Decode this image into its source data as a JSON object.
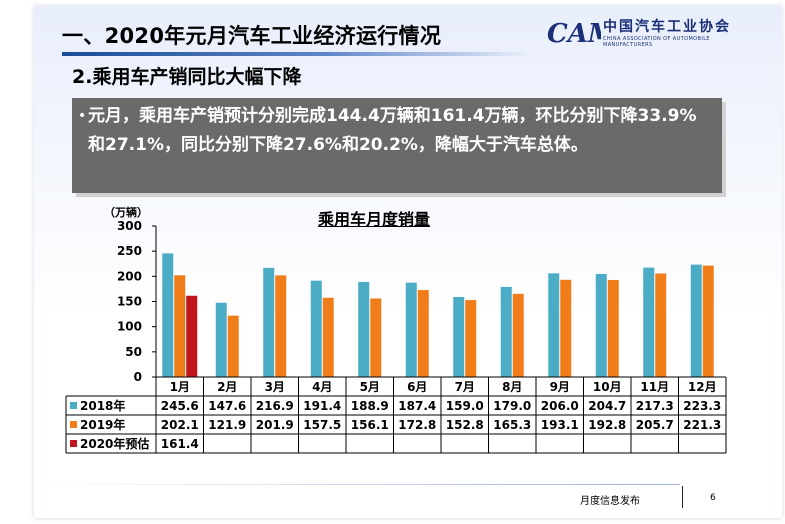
{
  "header": {
    "title": "一、2020年元月汽车工业经济运行情况",
    "logo_cn": "中国汽车工业协会",
    "logo_en": "CHINA ASSOCIATION OF AUTOMOBILE MANUFACTURERS",
    "logo_mark": "CAM"
  },
  "section": {
    "subtitle": "2.乘用车产销同比大幅下降",
    "bullet": "元月，乘用车产销预计分别完成144.4万辆和161.4万辆，环比分别下降33.9%和27.1%，同比分别下降27.6%和20.2%，降幅大于汽车总体。"
  },
  "footer": {
    "label": "月度信息发布",
    "page": "6"
  },
  "chart_data": {
    "type": "bar",
    "title": "乘用车月度销量",
    "ylabel": "（万辆）",
    "ylim": [
      0,
      300
    ],
    "yticks": [
      "0",
      "50",
      "100",
      "150",
      "200",
      "250",
      "300"
    ],
    "categories": [
      "1月",
      "2月",
      "3月",
      "4月",
      "5月",
      "6月",
      "7月",
      "8月",
      "9月",
      "10月",
      "11月",
      "12月"
    ],
    "series": [
      {
        "name": "2018年",
        "color": "#4bacc6",
        "values": [
          245.6,
          147.6,
          216.9,
          191.4,
          188.9,
          187.4,
          159.0,
          179.0,
          206.0,
          204.7,
          217.3,
          223.3
        ],
        "labels": [
          "245.6",
          "147.6",
          "216.9",
          "191.4",
          "188.9",
          "187.4",
          "159.0",
          "179.0",
          "206.0",
          "204.7",
          "217.3",
          "223.3"
        ]
      },
      {
        "name": "2019年",
        "color": "#f07d1a",
        "values": [
          202.1,
          121.9,
          201.9,
          157.5,
          156.1,
          172.8,
          152.8,
          165.3,
          193.1,
          192.8,
          205.7,
          221.3
        ],
        "labels": [
          "202.1",
          "121.9",
          "201.9",
          "157.5",
          "156.1",
          "172.8",
          "152.8",
          "165.3",
          "193.1",
          "192.8",
          "205.7",
          "221.3"
        ]
      },
      {
        "name": "2020年预估",
        "color": "#c0161c",
        "values": [
          161.4,
          null,
          null,
          null,
          null,
          null,
          null,
          null,
          null,
          null,
          null,
          null
        ],
        "labels": [
          "161.4",
          "",
          "",
          "",
          "",
          "",
          "",
          "",
          "",
          "",
          "",
          ""
        ]
      }
    ],
    "grid": false,
    "legend": "data-table"
  }
}
